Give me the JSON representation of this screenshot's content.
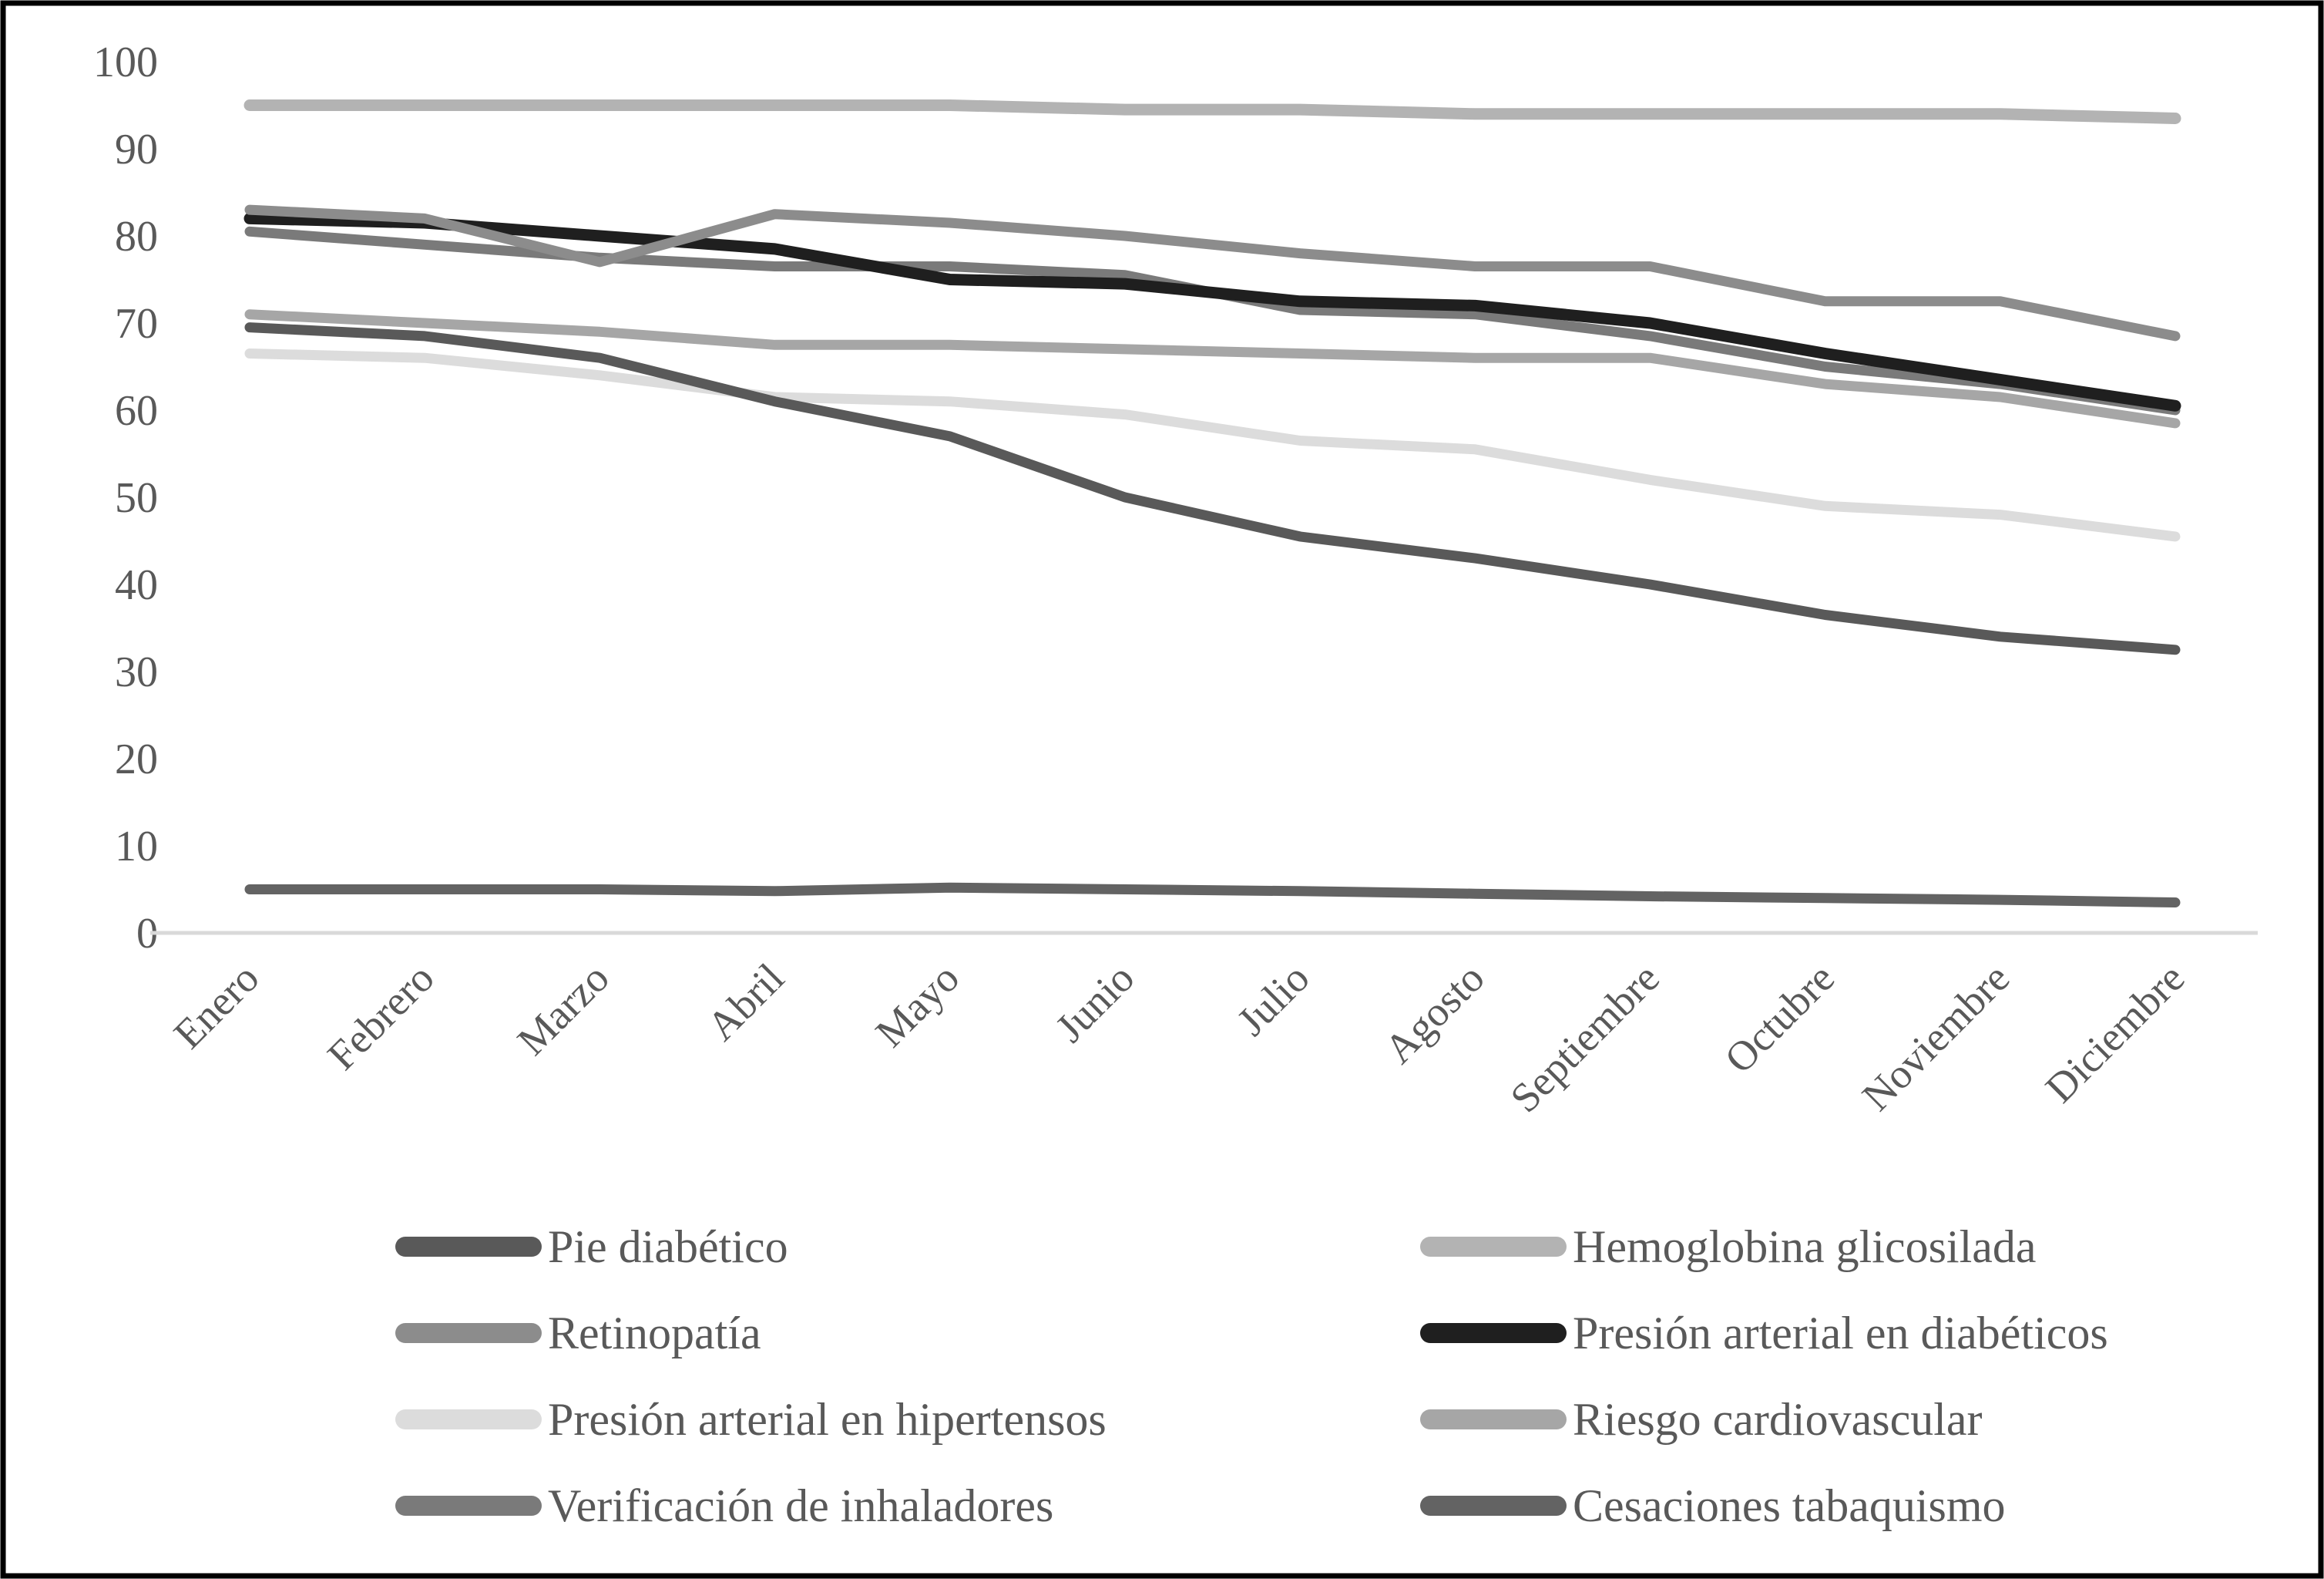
{
  "chart_data": {
    "type": "line",
    "title": "",
    "xlabel": "",
    "ylabel": "",
    "ylim": [
      0,
      100
    ],
    "ytick_step": 10,
    "yticks": [
      0,
      10,
      20,
      30,
      40,
      50,
      60,
      70,
      80,
      90,
      100
    ],
    "grid": false,
    "legend_position": "bottom",
    "legend_columns": 2,
    "axis_line_color": "#d9d9d9",
    "border_color": "#000000",
    "text_color": "#595959",
    "categories": [
      "Enero",
      "Febrero",
      "Marzo",
      "Abril",
      "Mayo",
      "Junio",
      "Julio",
      "Agosto",
      "Septiembre",
      "Octubre",
      "Noviembre",
      "Diciembre"
    ],
    "series": [
      {
        "name": "Pie diabético",
        "color": "#595959",
        "stroke_width": 13,
        "values": [
          69.5,
          68.5,
          66,
          61,
          57,
          50,
          45.5,
          43,
          40,
          36.5,
          34,
          32.5
        ]
      },
      {
        "name": "Hemoglobina glicosilada",
        "color": "#b3b3b3",
        "stroke_width": 15,
        "values": [
          95,
          95,
          95,
          95,
          95,
          94.5,
          94.5,
          94,
          94,
          94,
          94,
          93.5
        ]
      },
      {
        "name": "Retinopatía",
        "color": "#8c8c8c",
        "stroke_width": 13,
        "values": [
          83,
          82,
          77,
          82.5,
          81.5,
          80,
          78,
          76.5,
          76.5,
          72.5,
          72.5,
          68.5
        ]
      },
      {
        "name": "Presión arterial en diabéticos",
        "color": "#1f1f1f",
        "stroke_width": 15,
        "values": [
          82,
          81.5,
          80,
          78.5,
          75,
          74.5,
          72.5,
          72,
          70,
          66.5,
          63.5,
          60.5
        ]
      },
      {
        "name": "Presión arterial en hipertensos",
        "color": "#dcdcdc",
        "stroke_width": 13,
        "values": [
          66.5,
          66,
          64,
          61.5,
          61,
          59.5,
          56.5,
          55.5,
          52,
          49,
          48,
          45.5
        ]
      },
      {
        "name": "Riesgo cardiovascular",
        "color": "#a6a6a6",
        "stroke_width": 13,
        "values": [
          71,
          70,
          69,
          67.5,
          67.5,
          67,
          66.5,
          66,
          66,
          63,
          61.5,
          58.5
        ]
      },
      {
        "name": "Verificación de inhaladores",
        "color": "#7a7a7a",
        "stroke_width": 13,
        "values": [
          80.5,
          79,
          77.5,
          76.5,
          76.5,
          75.5,
          71.5,
          71,
          68.5,
          65,
          63,
          60
        ]
      },
      {
        "name": "Cesaciones tabaquismo",
        "color": "#636363",
        "stroke_width": 13,
        "values": [
          5,
          5,
          5,
          4.8,
          5.2,
          5,
          4.8,
          4.5,
          4.2,
          4,
          3.8,
          3.5
        ]
      }
    ],
    "draw_order": [
      1,
      4,
      5,
      6,
      0,
      3,
      2,
      7
    ]
  }
}
